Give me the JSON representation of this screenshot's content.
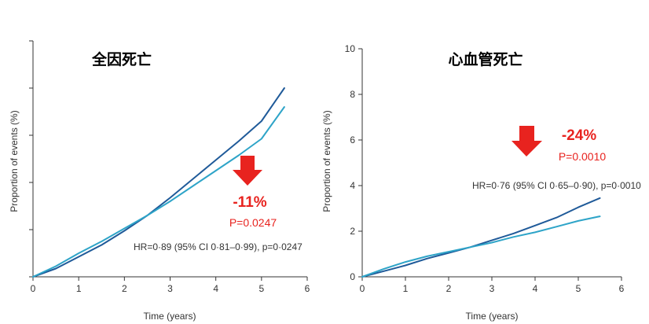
{
  "chart_data": [
    {
      "type": "line",
      "title": "全因死亡",
      "xlabel": "Time (years)",
      "ylabel": "Proportion of events (%)",
      "xlim": [
        0,
        6
      ],
      "ylim": [
        0,
        10
      ],
      "x_ticks": [
        "0",
        "1",
        "2",
        "3",
        "4",
        "5",
        "6"
      ],
      "y_ticks": [],
      "y_tick_values": [
        0,
        2,
        4,
        6,
        8,
        10
      ],
      "series": [
        {
          "color": "#1f5a99",
          "x": [
            0,
            0.5,
            1,
            1.5,
            2,
            2.5,
            3,
            3.5,
            4,
            4.5,
            5,
            5.5
          ],
          "y": [
            0,
            0.35,
            0.85,
            1.35,
            1.95,
            2.6,
            3.35,
            4.15,
            4.95,
            5.75,
            6.6,
            8.0
          ]
        },
        {
          "color": "#2ea4c8",
          "x": [
            0,
            0.5,
            1,
            1.5,
            2,
            2.5,
            3,
            3.5,
            4,
            4.5,
            5,
            5.5
          ],
          "y": [
            0,
            0.45,
            1.0,
            1.5,
            2.05,
            2.6,
            3.2,
            3.85,
            4.5,
            5.15,
            5.85,
            7.2
          ]
        }
      ],
      "annotations": {
        "percent": "-11%",
        "p_value": "P=0.0247",
        "hr_text": "HR=0·89 (95% CI 0·81–0·99), p=0·0247"
      },
      "accent_color": "#e8231f"
    },
    {
      "type": "line",
      "title": "心血管死亡",
      "xlabel": "Time (years)",
      "ylabel": "Proportion of events (%)",
      "xlim": [
        0,
        6
      ],
      "ylim": [
        0,
        10
      ],
      "x_ticks": [
        "0",
        "1",
        "2",
        "3",
        "4",
        "5",
        "6"
      ],
      "y_ticks": [
        "0",
        "2",
        "4",
        "6",
        "8",
        "10"
      ],
      "y_tick_values": [
        0,
        2,
        4,
        6,
        8,
        10
      ],
      "series": [
        {
          "color": "#1f5a99",
          "x": [
            0,
            0.5,
            1,
            1.5,
            2,
            2.5,
            3,
            3.5,
            4,
            4.5,
            5,
            5.5
          ],
          "y": [
            0,
            0.25,
            0.5,
            0.8,
            1.05,
            1.3,
            1.6,
            1.9,
            2.25,
            2.6,
            3.05,
            3.45
          ]
        },
        {
          "color": "#2ea4c8",
          "x": [
            0,
            0.5,
            1,
            1.5,
            2,
            2.5,
            3,
            3.5,
            4,
            4.5,
            5,
            5.5
          ],
          "y": [
            0,
            0.35,
            0.65,
            0.9,
            1.1,
            1.3,
            1.5,
            1.75,
            1.95,
            2.2,
            2.45,
            2.65
          ]
        }
      ],
      "annotations": {
        "percent": "-24%",
        "p_value": "P=0.0010",
        "hr_text": "HR=0·76 (95% CI 0·65–0·90), p=0·0010"
      },
      "accent_color": "#e8231f"
    }
  ]
}
